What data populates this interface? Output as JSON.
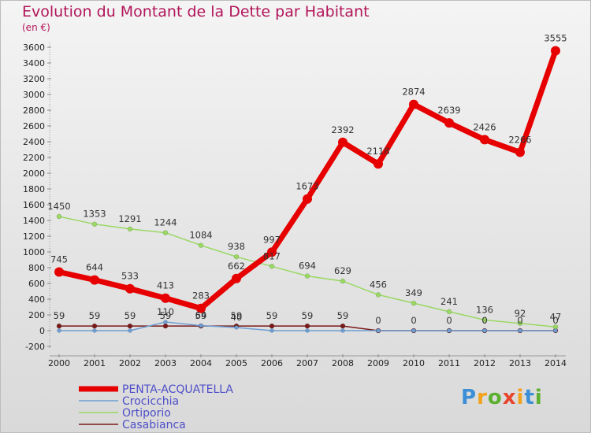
{
  "chart_data": {
    "type": "line",
    "title": "Evolution du Montant de la Dette par Habitant",
    "unit_label": "(en €)",
    "x": [
      "2000",
      "2001",
      "2002",
      "2003",
      "2004",
      "2005",
      "2006",
      "2007",
      "2008",
      "2009",
      "2010",
      "2011",
      "2012",
      "2013",
      "2014"
    ],
    "ylim": [
      -200,
      3600
    ],
    "yticks": [
      -200,
      0,
      200,
      400,
      600,
      800,
      1000,
      1200,
      1400,
      1600,
      1800,
      2000,
      2200,
      2400,
      2600,
      2800,
      3000,
      3200,
      3400,
      3600
    ],
    "grid": false,
    "legend_position": "bottom-left",
    "series": [
      {
        "name": "PENTA-ACQUATELLA",
        "color": "#e60000",
        "width": 7,
        "marker": 6,
        "values": [
          745,
          644,
          533,
          413,
          283,
          662,
          997,
          1673,
          2392,
          2118,
          2874,
          2639,
          2426,
          2266,
          3555
        ],
        "labels": [
          "745",
          "644",
          "533",
          "413",
          "283",
          "662",
          "997",
          "1673",
          "2392",
          "2118",
          "2874",
          "2639",
          "2426",
          "2266",
          "3555"
        ]
      },
      {
        "name": "Crocicchia",
        "color": "#6e9fd4",
        "width": 1.5,
        "marker": 2.5,
        "values": [
          0,
          0,
          0,
          110,
          64,
          40,
          0,
          0,
          0,
          0,
          0,
          0,
          0,
          0,
          0
        ],
        "labels": [
          "",
          "",
          "",
          "110",
          "64",
          "40",
          "",
          "",
          "",
          "",
          "",
          "",
          "",
          "",
          ""
        ]
      },
      {
        "name": "Ortiporio",
        "color": "#9ad864",
        "width": 1.5,
        "marker": 3,
        "values": [
          1450,
          1353,
          1291,
          1244,
          1084,
          938,
          817,
          694,
          629,
          456,
          349,
          241,
          136,
          92,
          47
        ],
        "labels": [
          "1450",
          "1353",
          "1291",
          "1244",
          "1084",
          "938",
          "817",
          "694",
          "629",
          "456",
          "349",
          "241",
          "136",
          "92",
          "47"
        ]
      },
      {
        "name": "Casabianca",
        "color": "#7a1a1a",
        "width": 1.5,
        "marker": 3,
        "values": [
          59,
          59,
          59,
          59,
          59,
          59,
          59,
          59,
          59,
          0,
          0,
          0,
          0,
          0,
          0
        ],
        "labels": [
          "59",
          "59",
          "59",
          "59",
          "59",
          "59",
          "59",
          "59",
          "59",
          "0",
          "0",
          "0",
          "0",
          "0",
          "0"
        ]
      }
    ]
  },
  "logo": {
    "letters": [
      "P",
      "r",
      "o",
      "x",
      "i",
      "t",
      "i"
    ],
    "colors": [
      "#3b8fd6",
      "#f2a21b",
      "#5cb030",
      "#e8442c",
      "#f2a21b",
      "#3b8fd6",
      "#5cb030"
    ]
  }
}
